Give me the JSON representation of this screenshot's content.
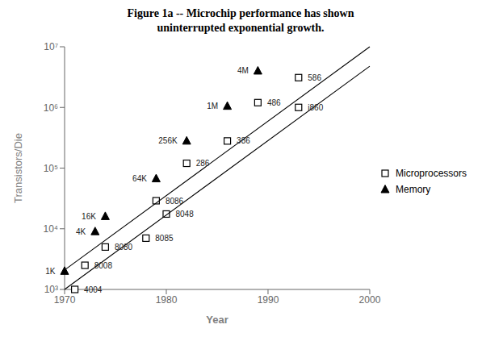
{
  "chart_data": {
    "type": "scatter",
    "title": "Figure 1a -- Microchip performance has shown\nuninterrupted exponential growth.",
    "xlabel": "Year",
    "ylabel": "Transistors/Die",
    "xlim": [
      1970,
      2000
    ],
    "xticks": [
      1970,
      1980,
      1990,
      2000
    ],
    "ylim": [
      1000,
      10000000
    ],
    "yticks": [
      {
        "value": 1000,
        "label": "10³"
      },
      {
        "value": 10000,
        "label": "10⁴"
      },
      {
        "value": 100000,
        "label": "10⁵"
      },
      {
        "value": 1000000,
        "label": "10⁶"
      },
      {
        "value": 10000000,
        "label": "10⁷"
      }
    ],
    "log": "y",
    "legend": "right",
    "series": [
      {
        "name": "Microprocessors",
        "type": "scatter",
        "marker": "square",
        "color": "black",
        "x": [
          1971,
          1972,
          1974,
          1978,
          1979,
          1980,
          1982,
          1986,
          1989,
          1993,
          1993
        ],
        "values": [
          1000,
          2500,
          5000,
          7000,
          29000,
          17500,
          120000,
          280000,
          1200000,
          3100000,
          1000000
        ],
        "labels": [
          "4004",
          "8008",
          "8080",
          "8085",
          "8086",
          "8048",
          "286",
          "386",
          "486",
          "586",
          "i860"
        ]
      },
      {
        "name": "Memory",
        "type": "scatter",
        "marker": "triangle",
        "color": "black",
        "x": [
          1970,
          1973,
          1974,
          1979,
          1982,
          1986,
          1989
        ],
        "values": [
          2000,
          9000,
          16000,
          67000,
          280000,
          1050000,
          4000000
        ],
        "labels": [
          "1K",
          "4K",
          "16K",
          "64K",
          "256K",
          "1M",
          "4M"
        ]
      },
      {
        "type": "line",
        "color": "black",
        "x": [
          1970,
          2000
        ],
        "values": [
          2089.29613085404,
          10000000
        ]
      },
      {
        "type": "line",
        "color": "black",
        "x": [
          1970,
          2000
        ],
        "values": [
          1000,
          4786300.923226383
        ]
      }
    ]
  }
}
